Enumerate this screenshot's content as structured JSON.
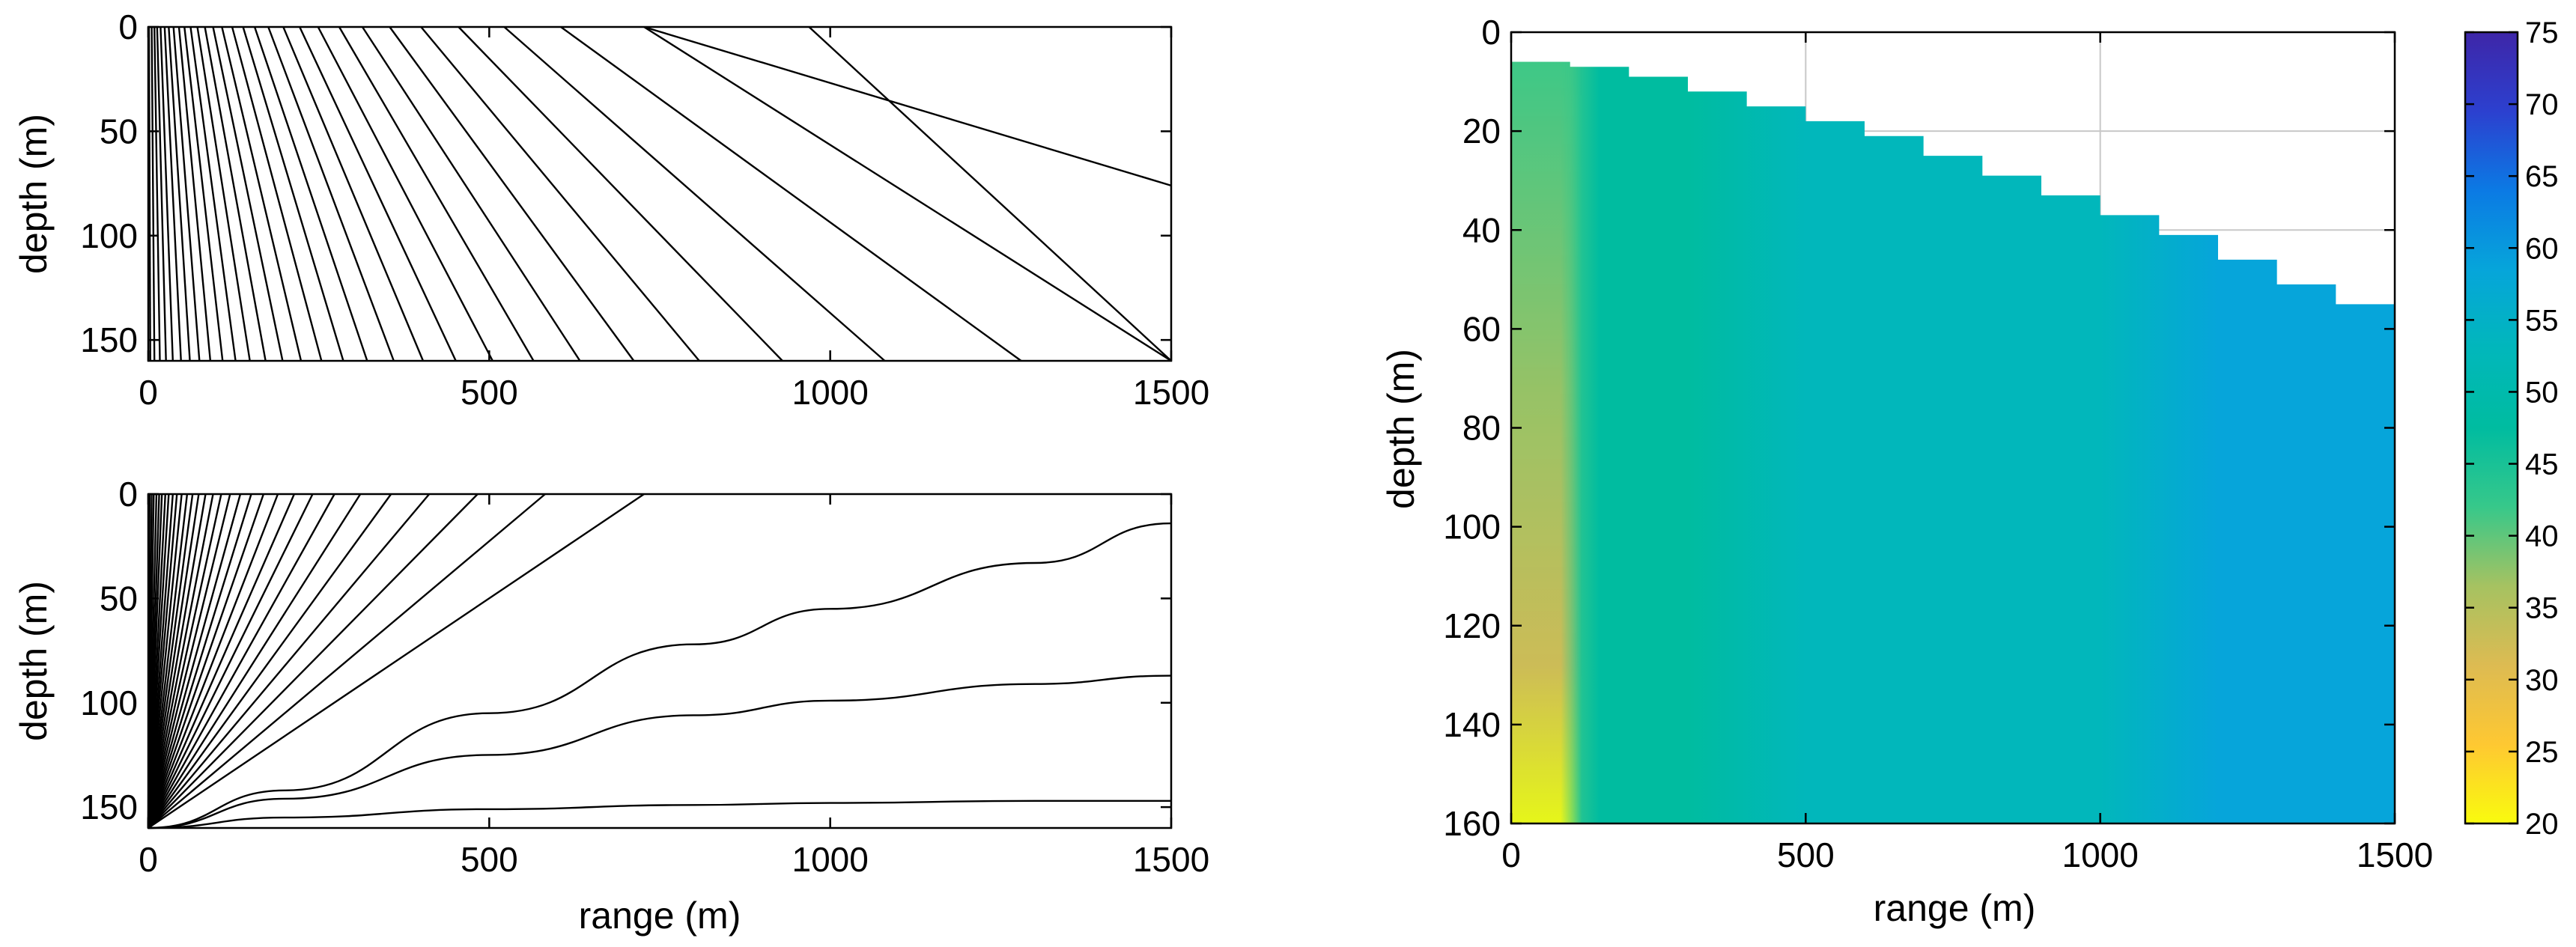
{
  "colors": {
    "background": "#ffffff",
    "axes": "#000000",
    "grid": "#c8c8c8",
    "rays": "#000000",
    "colormap": [
      "#f9fb0e",
      "#fec832",
      "#ddbb52",
      "#a6c261",
      "#37c88a",
      "#00bca0",
      "#01b7bb",
      "#06a5da",
      "#0b7ae4",
      "#2c40cf",
      "#3e26a8"
    ]
  },
  "chart_data": [
    {
      "id": "top-left",
      "type": "line",
      "xlabel": "",
      "ylabel": "depth (m)",
      "xlim": [
        0,
        1500
      ],
      "ylim": [
        0,
        160
      ],
      "y_inverted": true,
      "x_ticks": [
        "0",
        "500",
        "1000",
        "1500"
      ],
      "y_ticks": [
        "0",
        "50",
        "100",
        "150"
      ],
      "rays_description_values": "straight rays from surface (depth 0) at start range to depth 160 at end range",
      "rays": [
        {
          "x0": 1,
          "x1": 3
        },
        {
          "x0": 5,
          "x1": 9
        },
        {
          "x0": 9,
          "x1": 17
        },
        {
          "x0": 13,
          "x1": 26
        },
        {
          "x0": 18,
          "x1": 36
        },
        {
          "x0": 24,
          "x1": 48
        },
        {
          "x0": 30,
          "x1": 61
        },
        {
          "x0": 37,
          "x1": 75
        },
        {
          "x0": 45,
          "x1": 91
        },
        {
          "x0": 53,
          "x1": 109
        },
        {
          "x0": 62,
          "x1": 128
        },
        {
          "x0": 72,
          "x1": 149
        },
        {
          "x0": 83,
          "x1": 172
        },
        {
          "x0": 95,
          "x1": 197
        },
        {
          "x0": 108,
          "x1": 224
        },
        {
          "x0": 123,
          "x1": 254
        },
        {
          "x0": 139,
          "x1": 286
        },
        {
          "x0": 156,
          "x1": 321
        },
        {
          "x0": 176,
          "x1": 360
        },
        {
          "x0": 198,
          "x1": 403
        },
        {
          "x0": 222,
          "x1": 451
        },
        {
          "x0": 249,
          "x1": 505
        },
        {
          "x0": 280,
          "x1": 565
        },
        {
          "x0": 314,
          "x1": 633
        },
        {
          "x0": 354,
          "x1": 712
        },
        {
          "x0": 400,
          "x1": 808
        },
        {
          "x0": 455,
          "x1": 930
        },
        {
          "x0": 522,
          "x1": 1080
        },
        {
          "x0": 605,
          "x1": 1280
        },
        {
          "x0": 727,
          "x1": 1500
        },
        {
          "x0": 969,
          "x1": 1500
        }
      ],
      "partial_rays": [
        {
          "x0": 727,
          "x_end": 1500,
          "y_end": 76
        }
      ]
    },
    {
      "id": "bottom-left",
      "type": "line",
      "xlabel": "range (m)",
      "ylabel": "depth (m)",
      "xlim": [
        0,
        1500
      ],
      "ylim": [
        0,
        160
      ],
      "y_inverted": true,
      "x_ticks": [
        "0",
        "500",
        "1000",
        "1500"
      ],
      "y_ticks": [
        "0",
        "50",
        "100",
        "150"
      ],
      "fan_source": {
        "x": 0,
        "y": 160
      },
      "fan_top_x": [
        2,
        5,
        8,
        12,
        16,
        20,
        25,
        30,
        36,
        42,
        49,
        57,
        65,
        74,
        84,
        95,
        107,
        120,
        135,
        151,
        169,
        190,
        214,
        241,
        273,
        311,
        356,
        412,
        483,
        582,
        727
      ],
      "fan_side_depths": [
        154,
        148,
        142,
        136,
        131,
        126,
        121,
        116,
        111,
        106,
        101
      ],
      "fan_curved": [
        {
          "points": [
            [
              0,
              160
            ],
            [
              200,
              142
            ],
            [
              500,
              105
            ],
            [
              800,
              72
            ],
            [
              1000,
              55
            ],
            [
              1300,
              33
            ],
            [
              1500,
              14
            ]
          ]
        },
        {
          "points": [
            [
              0,
              160
            ],
            [
              200,
              146
            ],
            [
              500,
              125
            ],
            [
              800,
              106
            ],
            [
              1000,
              99
            ],
            [
              1300,
              91
            ],
            [
              1500,
              87
            ]
          ]
        },
        {
          "points": [
            [
              0,
              160
            ],
            [
              200,
              155
            ],
            [
              500,
              151
            ],
            [
              800,
              149
            ],
            [
              1000,
              148
            ],
            [
              1300,
              147
            ],
            [
              1500,
              147
            ]
          ]
        }
      ]
    },
    {
      "id": "right",
      "type": "heatmap",
      "xlabel": "range (m)",
      "ylabel": "depth (m)",
      "xlim": [
        0,
        1500
      ],
      "ylim": [
        0,
        160
      ],
      "y_inverted": true,
      "grid": true,
      "x_ticks": [
        "0",
        "500",
        "1000",
        "1500"
      ],
      "y_ticks": [
        "0",
        "20",
        "40",
        "60",
        "80",
        "100",
        "120",
        "140",
        "160"
      ],
      "surface_depth_profile": [
        [
          0,
          6
        ],
        [
          100,
          7
        ],
        [
          200,
          9
        ],
        [
          300,
          12
        ],
        [
          400,
          15
        ],
        [
          500,
          18
        ],
        [
          600,
          21
        ],
        [
          700,
          25
        ],
        [
          800,
          29
        ],
        [
          900,
          33
        ],
        [
          1000,
          37
        ],
        [
          1100,
          41
        ],
        [
          1200,
          46
        ],
        [
          1300,
          51
        ],
        [
          1400,
          55
        ],
        [
          1500,
          60
        ]
      ],
      "value_profile_by_range": [
        [
          0,
          43
        ],
        [
          100,
          44
        ],
        [
          150,
          47
        ],
        [
          300,
          48
        ],
        [
          500,
          51
        ],
        [
          800,
          53
        ],
        [
          1000,
          55
        ],
        [
          1200,
          57
        ],
        [
          1500,
          59
        ]
      ],
      "deep_near_source_values": [
        [
          0,
          160,
          21
        ],
        [
          0,
          130,
          30
        ],
        [
          0,
          100,
          36
        ],
        [
          0,
          60,
          40
        ],
        [
          60,
          160,
          32
        ],
        [
          60,
          100,
          40
        ],
        [
          120,
          160,
          43
        ]
      ],
      "colorbar": {
        "ticks": [
          "20",
          "25",
          "30",
          "35",
          "40",
          "45",
          "50",
          "55",
          "60",
          "65",
          "70",
          "75"
        ],
        "range": [
          20,
          75
        ]
      }
    }
  ]
}
